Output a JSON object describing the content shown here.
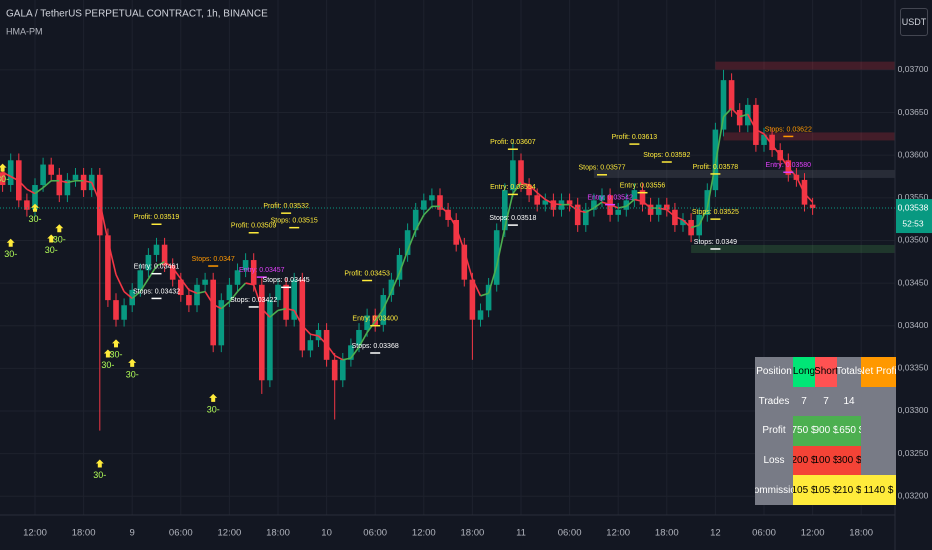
{
  "chart_data": {
    "type": "candlestick",
    "title": "GALA / TetherUS PERPETUAL CONTRACT, 1h, BINANCE",
    "indicator": "HMA-PM",
    "currency": "USDT",
    "categories": [
      null,
      null,
      null,
      null,
      "12:00",
      null,
      null,
      null,
      null,
      null,
      "18:00",
      null,
      null,
      null,
      null,
      null,
      "9",
      null,
      null,
      null,
      null,
      null,
      "06:00",
      null,
      null,
      null,
      null,
      null,
      "12:00",
      null,
      null,
      null,
      null,
      null,
      "18:00",
      null,
      null,
      null,
      null,
      null,
      "10",
      null,
      null,
      null,
      null,
      null,
      "06:00",
      null,
      null,
      null,
      null,
      null,
      "12:00",
      null,
      null,
      null,
      null,
      null,
      "18:00",
      null,
      null,
      null,
      null,
      null,
      "11",
      null,
      null,
      null,
      null,
      null,
      "06:00",
      null,
      null,
      null,
      null,
      null,
      "12:00",
      null,
      null,
      null,
      null,
      null,
      "18:00",
      null,
      null,
      null,
      null,
      null,
      "12",
      null,
      null,
      null,
      null,
      null,
      "06:00",
      null,
      null,
      null,
      null,
      null,
      "12:00",
      null,
      null,
      null,
      null,
      null,
      "18:00"
    ],
    "open": [
      0.0358,
      0.03565,
      0.03594,
      0.03547,
      0.03536,
      0.03565,
      0.03589,
      0.03577,
      0.03553,
      0.03571,
      0.03577,
      0.03559,
      0.03577,
      0.03506,
      0.0343,
      0.03407,
      0.03424,
      0.03442,
      0.03465,
      0.03483,
      0.03495,
      0.03471,
      0.03454,
      0.03436,
      0.03424,
      0.03448,
      0.03454,
      0.03377,
      0.0343,
      0.03448,
      0.03465,
      0.03477,
      0.03448,
      0.03336,
      0.0343,
      0.03448,
      0.03407,
      0.03454,
      0.03371,
      0.03383,
      0.03395,
      0.0336,
      0.03336,
      0.0336,
      0.03377,
      0.03395,
      0.03412,
      0.03401,
      0.03436,
      0.03454,
      0.03483,
      0.03512,
      0.03536,
      0.03547,
      0.03553,
      0.03536,
      0.03524,
      0.03495,
      0.03454,
      0.03407,
      0.03418,
      0.03448,
      0.03512,
      0.03559,
      0.03594,
      0.03565,
      0.03553,
      0.03542,
      0.03547,
      0.03536,
      0.03547,
      0.03542,
      0.03518,
      0.03536,
      0.03547,
      0.03553,
      0.0353,
      0.03536,
      0.03547,
      0.03559,
      0.03542,
      0.0353,
      0.03542,
      0.03536,
      0.03518,
      0.03524,
      0.03506,
      0.0353,
      0.03559,
      0.0363,
      0.03688,
      0.03653,
      0.03635,
      0.03659,
      0.03612,
      0.03624,
      0.03606,
      0.03594,
      0.03577,
      0.03571,
      0.03542,
      null,
      null,
      null,
      null,
      null,
      null
    ],
    "high": [
      0.03588,
      0.03602,
      0.03602,
      0.03555,
      0.03573,
      0.03597,
      0.03597,
      0.03585,
      0.03579,
      0.03585,
      0.03585,
      0.03585,
      0.03585,
      0.03514,
      0.03438,
      0.03432,
      0.0345,
      0.03473,
      0.03491,
      0.03503,
      0.03503,
      0.03479,
      0.03462,
      0.03444,
      0.03456,
      0.03462,
      0.03462,
      0.03438,
      0.03456,
      0.03473,
      0.03485,
      0.03485,
      0.03456,
      0.03438,
      0.03456,
      0.03456,
      0.03462,
      0.03462,
      0.03391,
      0.03403,
      0.03403,
      0.03368,
      0.03368,
      0.03385,
      0.03403,
      0.0342,
      0.0342,
      0.03444,
      0.03462,
      0.03491,
      0.0352,
      0.03544,
      0.03555,
      0.03561,
      0.03561,
      0.03544,
      0.03532,
      0.03503,
      0.03462,
      0.03426,
      0.03456,
      0.0352,
      0.03567,
      0.03615,
      0.03602,
      0.03573,
      0.03561,
      0.03555,
      0.03555,
      0.03555,
      0.03555,
      0.0355,
      0.03544,
      0.03555,
      0.03561,
      0.03561,
      0.03544,
      0.03555,
      0.03567,
      0.03567,
      0.0355,
      0.0355,
      0.0355,
      0.03544,
      0.03532,
      0.03532,
      0.03538,
      0.03567,
      0.03638,
      0.037,
      0.03696,
      0.03661,
      0.03667,
      0.03667,
      0.03632,
      0.03632,
      0.03614,
      0.03602,
      0.03585,
      0.03579,
      0.0355,
      null,
      null,
      null,
      null,
      null,
      null
    ],
    "low": [
      0.03557,
      0.03557,
      0.03539,
      0.03528,
      0.03528,
      0.03557,
      0.03569,
      0.03545,
      0.03545,
      0.03563,
      0.03551,
      0.03551,
      0.03277,
      0.03422,
      0.03399,
      0.03399,
      0.03416,
      0.03434,
      0.03457,
      0.03475,
      0.03463,
      0.03446,
      0.03428,
      0.03416,
      0.03416,
      0.0344,
      0.03369,
      0.03369,
      0.03422,
      0.0344,
      0.03457,
      0.0344,
      0.0332,
      0.03328,
      0.03422,
      0.03399,
      0.03399,
      0.03363,
      0.03363,
      0.03375,
      0.03352,
      0.0329,
      0.03328,
      0.03352,
      0.03369,
      0.03387,
      0.03393,
      0.03393,
      0.03428,
      0.03446,
      0.03475,
      0.03504,
      0.03528,
      0.03539,
      0.03528,
      0.03516,
      0.03487,
      0.03446,
      0.0336,
      0.03399,
      0.0341,
      0.0344,
      0.03504,
      0.03551,
      0.03557,
      0.03545,
      0.03534,
      0.03534,
      0.03528,
      0.03528,
      0.03534,
      0.0351,
      0.0351,
      0.03528,
      0.03539,
      0.03522,
      0.03522,
      0.03528,
      0.03539,
      0.03534,
      0.03522,
      0.03522,
      0.03528,
      0.0351,
      0.0351,
      0.03498,
      0.03498,
      0.03522,
      0.03551,
      0.03622,
      0.03645,
      0.03627,
      0.03627,
      0.03604,
      0.03604,
      0.03598,
      0.03586,
      0.03569,
      0.03563,
      0.03534,
      0.0353,
      null,
      null,
      null,
      null,
      null,
      null
    ],
    "close": [
      0.03565,
      0.03594,
      0.03547,
      0.03536,
      0.03565,
      0.03589,
      0.03577,
      0.03553,
      0.03571,
      0.03577,
      0.03559,
      0.03577,
      0.03506,
      0.0343,
      0.03407,
      0.03424,
      0.03442,
      0.03465,
      0.03483,
      0.03495,
      0.03471,
      0.03454,
      0.03436,
      0.03424,
      0.03448,
      0.03454,
      0.03377,
      0.0343,
      0.03448,
      0.03465,
      0.03477,
      0.03448,
      0.03336,
      0.0343,
      0.03448,
      0.03407,
      0.03454,
      0.03371,
      0.03383,
      0.03395,
      0.0336,
      0.03336,
      0.0336,
      0.03377,
      0.03395,
      0.03412,
      0.03401,
      0.03436,
      0.03454,
      0.03483,
      0.03512,
      0.03536,
      0.03547,
      0.03553,
      0.03536,
      0.03524,
      0.03495,
      0.03454,
      0.03407,
      0.03418,
      0.03448,
      0.03512,
      0.03559,
      0.03594,
      0.03565,
      0.03553,
      0.03542,
      0.03547,
      0.03536,
      0.03547,
      0.03542,
      0.03518,
      0.03536,
      0.03547,
      0.03553,
      0.0353,
      0.03536,
      0.03547,
      0.03559,
      0.03542,
      0.0353,
      0.03542,
      0.03536,
      0.03518,
      0.03524,
      0.03506,
      0.0353,
      0.03559,
      0.0363,
      0.03688,
      0.03653,
      0.03635,
      0.03659,
      0.03612,
      0.03624,
      0.03606,
      0.03594,
      0.03577,
      0.03571,
      0.03542,
      0.03538,
      null,
      null,
      null,
      null,
      null,
      null
    ],
    "up_color": "#089981",
    "down_color": "#f23645",
    "hma": {
      "values": [
        0.0358,
        0.03575,
        0.0357,
        0.0356,
        0.03555,
        0.03562,
        0.0357,
        0.0357,
        0.03568,
        0.0357,
        0.0357,
        0.03568,
        0.03545,
        0.035,
        0.0346,
        0.0344,
        0.03432,
        0.0344,
        0.03455,
        0.0347,
        0.03475,
        0.03468,
        0.03455,
        0.03442,
        0.03438,
        0.0344,
        0.03425,
        0.0342,
        0.03428,
        0.0344,
        0.0345,
        0.03448,
        0.0342,
        0.0341,
        0.03418,
        0.0342,
        0.03418,
        0.034,
        0.0339,
        0.03388,
        0.03378,
        0.03365,
        0.0336,
        0.03362,
        0.03375,
        0.03392,
        0.03405,
        0.0342,
        0.0344,
        0.03462,
        0.03488,
        0.03512,
        0.0353,
        0.0354,
        0.0354,
        0.03532,
        0.03515,
        0.03488,
        0.03455,
        0.03435,
        0.03438,
        0.0347,
        0.03515,
        0.03555,
        0.03568,
        0.03565,
        0.03556,
        0.03548,
        0.03543,
        0.03542,
        0.03542,
        0.03535,
        0.03533,
        0.03538,
        0.03545,
        0.03542,
        0.03538,
        0.0354,
        0.03548,
        0.03546,
        0.03538,
        0.03538,
        0.03536,
        0.03528,
        0.03524,
        0.03515,
        0.03518,
        0.03538,
        0.0359,
        0.03645,
        0.03655,
        0.03645,
        0.03648,
        0.0363,
        0.03625,
        0.03612,
        0.036,
        0.03585,
        0.03575,
        0.03555,
        0.03545,
        null,
        null,
        null,
        null,
        null,
        null
      ],
      "rise_color": "#4caf50",
      "fall_color": "#f23645"
    },
    "ylim": [
      0.03178,
      0.03782
    ],
    "yticks": [
      {
        "value": 0.037,
        "label": "0,03700"
      },
      {
        "value": 0.0365,
        "label": "0,03650"
      },
      {
        "value": 0.036,
        "label": "0,03600"
      },
      {
        "value": 0.0355,
        "label": "0,03550"
      },
      {
        "value": 0.035,
        "label": "0,03500"
      },
      {
        "value": 0.0345,
        "label": "0,03450"
      },
      {
        "value": 0.034,
        "label": "0,03400"
      },
      {
        "value": 0.0335,
        "label": "0,03350"
      },
      {
        "value": 0.033,
        "label": "0,03300"
      },
      {
        "value": 0.0325,
        "label": "0,03250"
      },
      {
        "value": 0.032,
        "label": "0,03200"
      }
    ],
    "grid": true,
    "last_price": {
      "value": 0.03538,
      "label": "0,03538"
    },
    "countdown": "52:53",
    "signals": [
      {
        "label": "30-",
        "index": 0,
        "price": 0.03583
      },
      {
        "label": "30-",
        "index": 1,
        "price": 0.03495
      },
      {
        "label": "30-",
        "index": 4,
        "price": 0.03536
      },
      {
        "label": "30-",
        "index": 6,
        "price": 0.035
      },
      {
        "label": "30-",
        "index": 7,
        "price": 0.03512
      },
      {
        "label": "30-",
        "index": 12,
        "price": 0.03236
      },
      {
        "label": "30-",
        "index": 13,
        "price": 0.03365
      },
      {
        "label": "30-",
        "index": 14,
        "price": 0.03377
      },
      {
        "label": "30-",
        "index": 16,
        "price": 0.03354
      },
      {
        "label": "30-",
        "index": 26,
        "price": 0.03313
      }
    ],
    "annotations": [
      {
        "text": "Profit: 0.03519",
        "index": 19,
        "price": 0.03519,
        "color": "#ffeb3b"
      },
      {
        "text": "Entry: 0.03461",
        "index": 19,
        "price": 0.03461,
        "color": "#ffffff"
      },
      {
        "text": "Stops: 0.03432",
        "index": 19,
        "price": 0.03432,
        "color": "#ffffff"
      },
      {
        "text": "Stops: 0.0347",
        "index": 26,
        "price": 0.0347,
        "color": "#ff9800"
      },
      {
        "text": "Profit: 0.03509",
        "index": 31,
        "price": 0.03509,
        "color": "#ffeb3b"
      },
      {
        "text": "Entry: 0.03457",
        "index": 32,
        "price": 0.03457,
        "color": "#e040fb"
      },
      {
        "text": "Stops: 0.03422",
        "index": 31,
        "price": 0.03422,
        "color": "#ffffff"
      },
      {
        "text": "Profit: 0.03532",
        "index": 35,
        "price": 0.03532,
        "color": "#ffeb3b"
      },
      {
        "text": "Stops: 0.03515",
        "index": 36,
        "price": 0.03515,
        "color": "#ffeb3b"
      },
      {
        "text": "Stops: 0.03445",
        "index": 35,
        "price": 0.03445,
        "color": "#ffffff"
      },
      {
        "text": "Profit: 0.03453",
        "index": 45,
        "price": 0.03453,
        "color": "#ffeb3b"
      },
      {
        "text": "Entry: 0.03400",
        "index": 46,
        "price": 0.034,
        "color": "#ffeb3b"
      },
      {
        "text": "Stops: 0.03368",
        "index": 46,
        "price": 0.03368,
        "color": "#ffffff"
      },
      {
        "text": "Profit: 0.03607",
        "index": 63,
        "price": 0.03607,
        "color": "#ffeb3b"
      },
      {
        "text": "Entry: 0.03554",
        "index": 63,
        "price": 0.03554,
        "color": "#ffeb3b"
      },
      {
        "text": "Stops: 0.03518",
        "index": 63,
        "price": 0.03518,
        "color": "#ffffff"
      },
      {
        "text": "Stops: 0.03577",
        "index": 74,
        "price": 0.03577,
        "color": "#ffeb3b"
      },
      {
        "text": "Entry: 0.03542",
        "index": 75,
        "price": 0.03542,
        "color": "#e040fb"
      },
      {
        "text": "Profit: 0.03613",
        "index": 78,
        "price": 0.03613,
        "color": "#ffeb3b"
      },
      {
        "text": "Entry: 0.03556",
        "index": 79,
        "price": 0.03556,
        "color": "#ffeb3b"
      },
      {
        "text": "Stops: 0.03592",
        "index": 82,
        "price": 0.03592,
        "color": "#ffeb3b"
      },
      {
        "text": "Profit: 0.03578",
        "index": 88,
        "price": 0.03578,
        "color": "#ffeb3b"
      },
      {
        "text": "Stops: 0.03525",
        "index": 88,
        "price": 0.03525,
        "color": "#ffeb3b"
      },
      {
        "text": "Stops: 0.0349",
        "index": 88,
        "price": 0.0349,
        "color": "#ffffff"
      },
      {
        "text": "Stops: 0.03622",
        "index": 97,
        "price": 0.03622,
        "color": "#ff9800"
      },
      {
        "text": "Entry: 0.03580",
        "index": 97,
        "price": 0.0358,
        "color": "#e040fb"
      }
    ],
    "levels": [
      {
        "price": 0.03705,
        "from": 88,
        "color": "#f23645"
      },
      {
        "price": 0.03622,
        "from": 89,
        "color": "#f23645"
      },
      {
        "price": 0.03578,
        "from": 73,
        "color": "#787b86"
      },
      {
        "price": 0.0349,
        "from": 85,
        "color": "#4caf50"
      }
    ]
  },
  "table": {
    "header": [
      "Position",
      "Long",
      "Short",
      "Totals",
      "Net Profit"
    ],
    "rows": [
      [
        "Trades",
        "7",
        "7",
        "14"
      ],
      [
        "Profit",
        "750 $",
        "900 $",
        "1650 $"
      ],
      [
        "Loss",
        "200 $",
        "100 $",
        "300 $"
      ],
      [
        "Commission",
        "105 $",
        "105 $",
        "210 $",
        "1140 $"
      ]
    ]
  }
}
